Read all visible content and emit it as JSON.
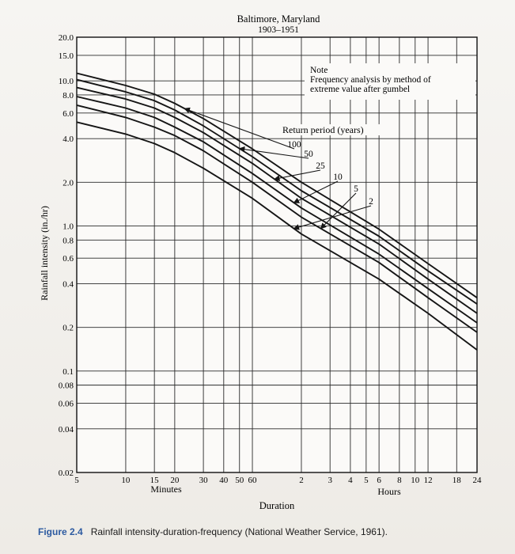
{
  "chart_data": {
    "type": "line",
    "title": "Baltimore, Maryland",
    "subtitle": "1903–1951",
    "note": [
      "Note",
      "Frequency analysis by method of",
      "extreme value after gumbel"
    ],
    "legend_title": "Return period (years)",
    "xlabel": "Duration",
    "ylabel": "Rainfall intensity (in./hr)",
    "x_unit_labels": {
      "minutes": "Minutes",
      "hours": "Hours"
    },
    "x_scale": "log",
    "y_scale": "log",
    "xlim_minutes": [
      5,
      1440
    ],
    "ylim": [
      0.02,
      20.0
    ],
    "grid": true,
    "y_ticks": [
      {
        "value": 20.0,
        "label": "20.0"
      },
      {
        "value": 15.0,
        "label": "15.0"
      },
      {
        "value": 10.0,
        "label": "10.0"
      },
      {
        "value": 8.0,
        "label": "8.0"
      },
      {
        "value": 6.0,
        "label": "6.0"
      },
      {
        "value": 4.0,
        "label": "4.0"
      },
      {
        "value": 2.0,
        "label": "2.0"
      },
      {
        "value": 1.0,
        "label": "1.0"
      },
      {
        "value": 0.8,
        "label": "0.8"
      },
      {
        "value": 0.6,
        "label": "0.6"
      },
      {
        "value": 0.4,
        "label": "0.4"
      },
      {
        "value": 0.2,
        "label": "0.2"
      },
      {
        "value": 0.1,
        "label": "0.1"
      },
      {
        "value": 0.08,
        "label": "0.08"
      },
      {
        "value": 0.06,
        "label": "0.06"
      },
      {
        "value": 0.04,
        "label": "0.04"
      },
      {
        "value": 0.02,
        "label": "0.02"
      }
    ],
    "x_ticks": [
      {
        "value": 5,
        "label": "5"
      },
      {
        "value": 10,
        "label": "10"
      },
      {
        "value": 15,
        "label": "15"
      },
      {
        "value": 20,
        "label": "20"
      },
      {
        "value": 30,
        "label": "30"
      },
      {
        "value": 40,
        "label": "40"
      },
      {
        "value": 50,
        "label": "50"
      },
      {
        "value": 60,
        "label": "60"
      },
      {
        "value": 120,
        "label": "2"
      },
      {
        "value": 180,
        "label": "3"
      },
      {
        "value": 240,
        "label": "4"
      },
      {
        "value": 300,
        "label": "5"
      },
      {
        "value": 360,
        "label": "6"
      },
      {
        "value": 480,
        "label": "8"
      },
      {
        "value": 600,
        "label": "10"
      },
      {
        "value": 720,
        "label": "12"
      },
      {
        "value": 1080,
        "label": "18"
      },
      {
        "value": 1440,
        "label": "24"
      }
    ],
    "series": [
      {
        "name": "100",
        "x": [
          5,
          10,
          15,
          20,
          30,
          60,
          120,
          360,
          720,
          1440
        ],
        "values": [
          11.3,
          9.3,
          8.1,
          7.0,
          5.5,
          3.4,
          2.0,
          0.95,
          0.55,
          0.32
        ]
      },
      {
        "name": "50",
        "x": [
          5,
          10,
          15,
          20,
          30,
          60,
          120,
          360,
          720,
          1440
        ],
        "values": [
          10.2,
          8.4,
          7.3,
          6.3,
          4.9,
          3.0,
          1.75,
          0.85,
          0.49,
          0.29
        ]
      },
      {
        "name": "25",
        "x": [
          5,
          10,
          15,
          20,
          30,
          60,
          120,
          360,
          720,
          1440
        ],
        "values": [
          9.0,
          7.5,
          6.5,
          5.6,
          4.4,
          2.7,
          1.55,
          0.75,
          0.43,
          0.25
        ]
      },
      {
        "name": "10",
        "x": [
          5,
          10,
          15,
          20,
          30,
          60,
          120,
          360,
          720,
          1440
        ],
        "values": [
          7.8,
          6.5,
          5.6,
          4.8,
          3.8,
          2.3,
          1.33,
          0.64,
          0.37,
          0.215
        ]
      },
      {
        "name": "5",
        "x": [
          5,
          10,
          15,
          20,
          30,
          60,
          120,
          360,
          720,
          1440
        ],
        "values": [
          6.8,
          5.6,
          4.8,
          4.2,
          3.3,
          2.0,
          1.15,
          0.56,
          0.32,
          0.185
        ]
      },
      {
        "name": "2",
        "x": [
          5,
          10,
          15,
          20,
          30,
          60,
          120,
          360,
          720,
          1440
        ],
        "values": [
          5.2,
          4.3,
          3.7,
          3.2,
          2.5,
          1.55,
          0.88,
          0.43,
          0.25,
          0.14
        ]
      }
    ],
    "leaders": [
      {
        "name": "100",
        "at_x": 23
      },
      {
        "name": "50",
        "at_x": 50
      },
      {
        "name": "25",
        "at_x": 82
      },
      {
        "name": "10",
        "at_x": 108
      },
      {
        "name": "5",
        "at_x": 158
      },
      {
        "name": "2",
        "at_x": 108
      }
    ]
  },
  "caption": {
    "label": "Figure 2.4",
    "text": "Rainfall intensity-duration-frequency (National Weather Service, 1961)."
  }
}
